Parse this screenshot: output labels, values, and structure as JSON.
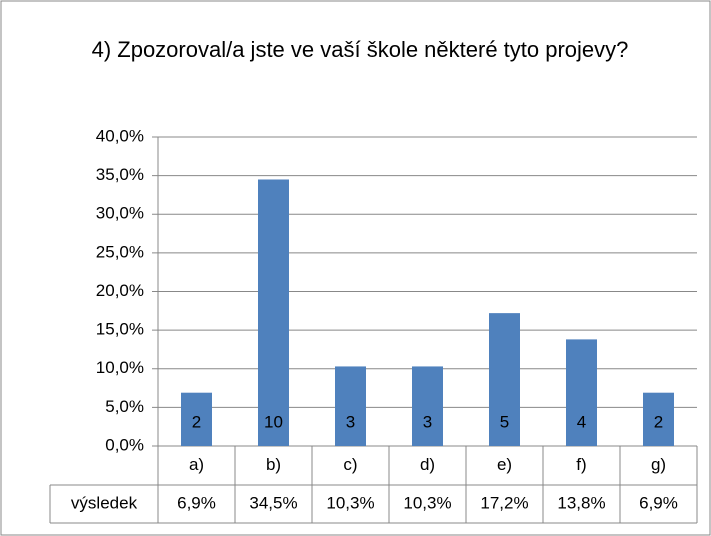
{
  "chart_data": {
    "type": "bar",
    "title": "4) Zpozoroval/a jste ve vaší škole některé tyto projevy?",
    "categories": [
      "a)",
      "b)",
      "c)",
      "d)",
      "e)",
      "f)",
      "g)"
    ],
    "series": [
      {
        "name": "výsledek",
        "color": "#4f81bd",
        "values": [
          6.9,
          34.5,
          10.3,
          10.3,
          17.2,
          13.8,
          6.9
        ],
        "value_labels": [
          "6,9%",
          "34,5%",
          "10,3%",
          "10,3%",
          "17,2%",
          "13,8%",
          "6,9%"
        ],
        "counts": [
          2,
          10,
          3,
          3,
          5,
          4,
          2
        ]
      }
    ],
    "ylim": [
      0,
      40
    ],
    "yticks": [
      {
        "value": 0,
        "label": "0,0%"
      },
      {
        "value": 5,
        "label": "5,0%"
      },
      {
        "value": 10,
        "label": "10,0%"
      },
      {
        "value": 15,
        "label": "15,0%"
      },
      {
        "value": 20,
        "label": "20,0%"
      },
      {
        "value": 25,
        "label": "25,0%"
      },
      {
        "value": 30,
        "label": "30,0%"
      },
      {
        "value": 35,
        "label": "35,0%"
      },
      {
        "value": 40,
        "label": "40,0%"
      }
    ],
    "grid": true
  }
}
